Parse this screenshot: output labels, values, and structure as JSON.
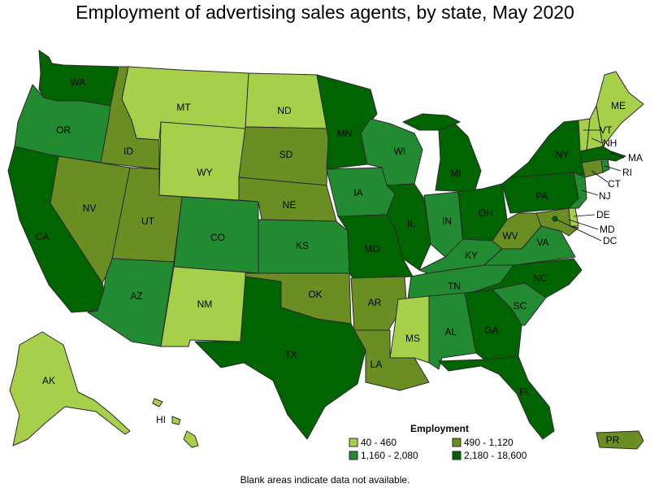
{
  "title": "Employment of advertising sales agents, by state, May 2020",
  "note": "Blank areas indicate data not available.",
  "legend": {
    "title": "Employment",
    "classes": [
      {
        "id": "c1",
        "label": "40 - 460",
        "color": "#a6d04a"
      },
      {
        "id": "c2",
        "label": "490 - 1,120",
        "color": "#6b8e23"
      },
      {
        "id": "c3",
        "label": "1,160 - 2,080",
        "color": "#228b32"
      },
      {
        "id": "c4",
        "label": "2,180 - 18,600",
        "color": "#006400"
      }
    ]
  },
  "states": {
    "WA": "c4",
    "OR": "c3",
    "CA": "c4",
    "ID": "c2",
    "NV": "c2",
    "MT": "c1",
    "WY": "c1",
    "UT": "c2",
    "AZ": "c3",
    "CO": "c3",
    "NM": "c1",
    "ND": "c1",
    "SD": "c2",
    "NE": "c2",
    "KS": "c3",
    "OK": "c2",
    "TX": "c4",
    "MN": "c4",
    "IA": "c3",
    "MO": "c4",
    "AR": "c2",
    "LA": "c2",
    "WI": "c3",
    "IL": "c4",
    "MI": "c4",
    "IN": "c3",
    "OH": "c4",
    "KY": "c3",
    "TN": "c3",
    "MS": "c1",
    "AL": "c3",
    "GA": "c4",
    "FL": "c4",
    "SC": "c3",
    "NC": "c4",
    "VA": "c3",
    "WV": "c2",
    "PA": "c4",
    "NY": "c4",
    "VT": "c1",
    "NH": "c1",
    "ME": "c1",
    "MA": "c4",
    "RI": "c3",
    "CT": "c2",
    "NJ": "c3",
    "DE": "c1",
    "MD": "c2",
    "DC": "c4",
    "AK": "c1",
    "HI": "c1",
    "PR": "c2"
  }
}
